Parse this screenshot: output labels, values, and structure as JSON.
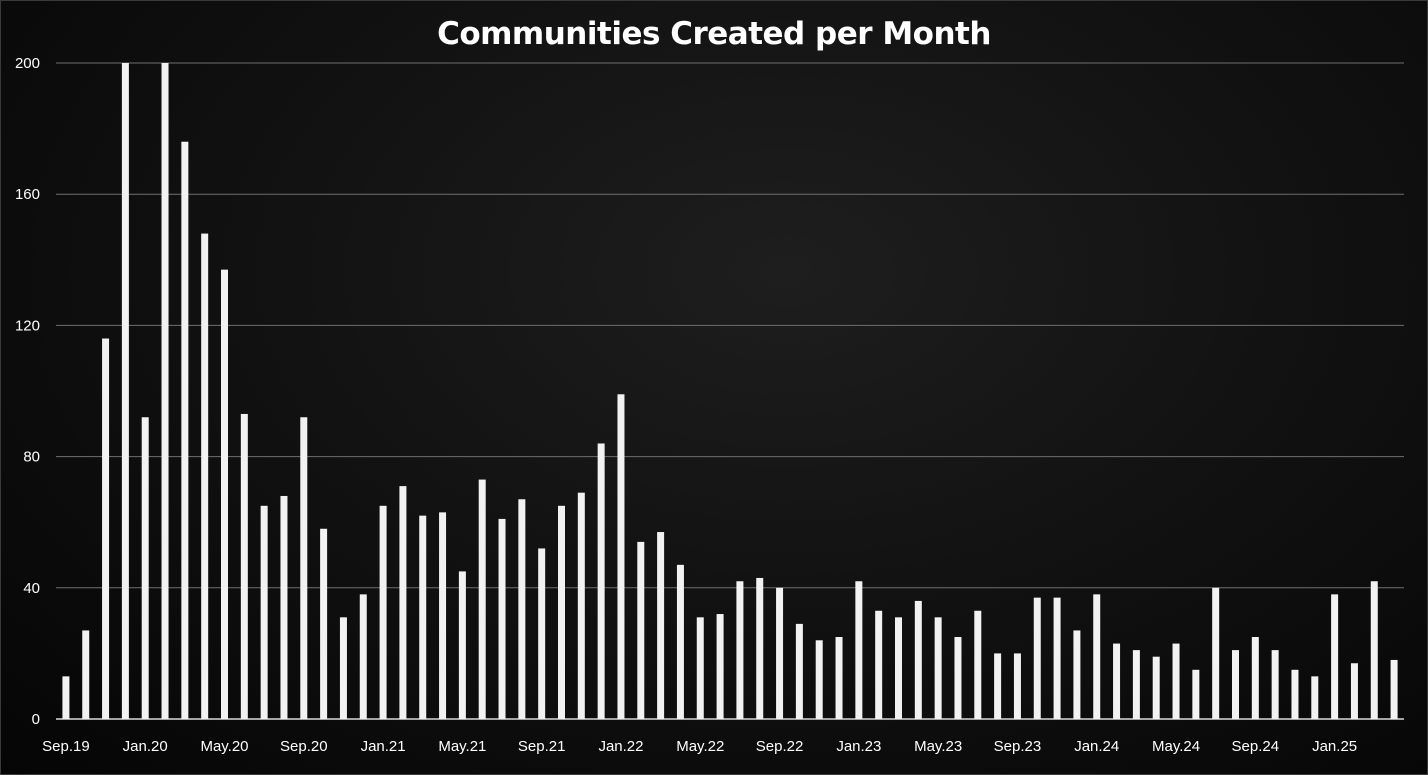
{
  "chart_data": {
    "type": "bar",
    "title": "Communities Created per Month",
    "xlabel": "",
    "ylabel": "",
    "ylim": [
      0,
      200
    ],
    "yticks": [
      0,
      40,
      80,
      120,
      160,
      200
    ],
    "grid": true,
    "bar_color": "#f2f2f2",
    "grid_color": "#6e6e6e",
    "background_color": "#0a0a0a",
    "x_tick_labels": [
      "Sep.19",
      "Jan.20",
      "May.20",
      "Sep.20",
      "Jan.21",
      "May.21",
      "Sep.21",
      "Jan.22",
      "May.22",
      "Sep.22",
      "Jan.23",
      "May.23",
      "Sep.23",
      "Jan.24",
      "May.24",
      "Sep.24",
      "Jan.25"
    ],
    "categories": [
      "Sep.19",
      "Oct.19",
      "Nov.19",
      "Dec.19",
      "Jan.20",
      "Feb.20",
      "Mar.20",
      "Apr.20",
      "May.20",
      "Jun.20",
      "Jul.20",
      "Aug.20",
      "Sep.20",
      "Oct.20",
      "Nov.20",
      "Dec.20",
      "Jan.21",
      "Feb.21",
      "Mar.21",
      "Apr.21",
      "May.21",
      "Jun.21",
      "Jul.21",
      "Aug.21",
      "Sep.21",
      "Oct.21",
      "Nov.21",
      "Dec.21",
      "Jan.22",
      "Feb.22",
      "Mar.22",
      "Apr.22",
      "May.22",
      "Jun.22",
      "Jul.22",
      "Aug.22",
      "Sep.22",
      "Oct.22",
      "Nov.22",
      "Dec.22",
      "Jan.23",
      "Feb.23",
      "Mar.23",
      "Apr.23",
      "May.23",
      "Jun.23",
      "Jul.23",
      "Aug.23",
      "Sep.23",
      "Oct.23",
      "Nov.23",
      "Dec.23",
      "Jan.24",
      "Feb.24",
      "Mar.24",
      "Apr.24",
      "May.24",
      "Jun.24",
      "Jul.24",
      "Aug.24",
      "Sep.24",
      "Oct.24",
      "Nov.24",
      "Dec.24",
      "Jan.25",
      "Feb.25",
      "Mar.25",
      "Apr.25"
    ],
    "values": [
      13,
      27,
      116,
      200,
      92,
      200,
      176,
      148,
      137,
      93,
      65,
      68,
      92,
      58,
      31,
      38,
      65,
      71,
      62,
      63,
      45,
      73,
      61,
      67,
      52,
      65,
      69,
      84,
      99,
      54,
      57,
      47,
      31,
      32,
      42,
      43,
      40,
      29,
      24,
      25,
      42,
      33,
      31,
      36,
      31,
      25,
      33,
      20,
      20,
      37,
      37,
      27,
      38,
      23,
      21,
      19,
      23,
      15,
      40,
      21,
      25,
      21,
      15,
      13,
      38,
      17,
      42,
      18
    ]
  }
}
